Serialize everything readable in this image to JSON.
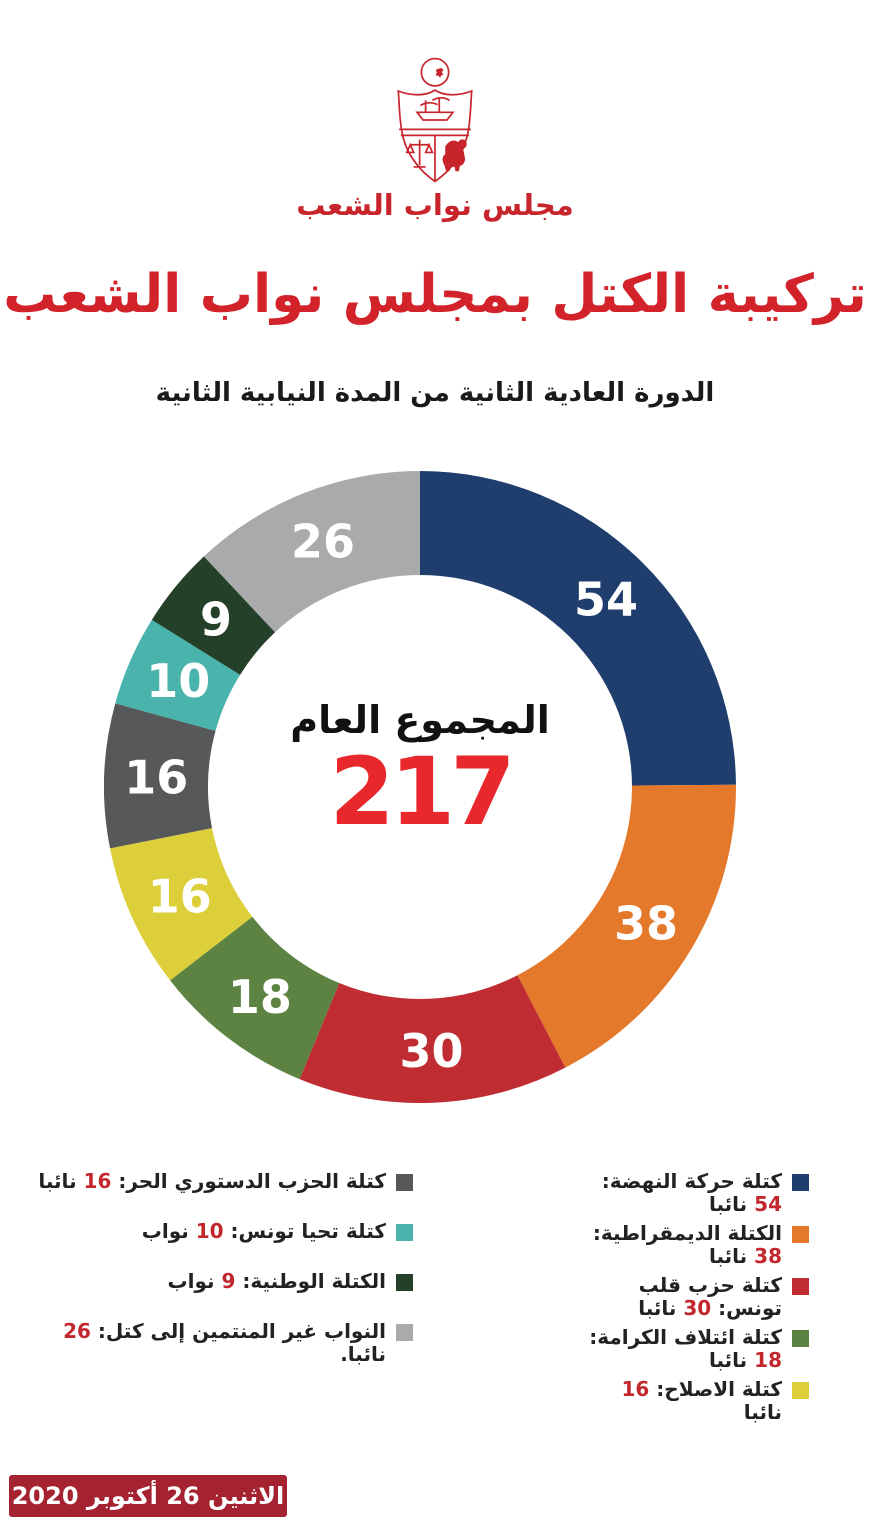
{
  "header": {
    "logo_caption": "مجلس نواب الشعب",
    "title": "تركيبة الكتل بمجلس نواب الشعب",
    "subtitle": "الدورة العادية الثانية من المدة النيابية الثانية"
  },
  "chart_data": {
    "type": "pie",
    "style": "donut",
    "title": "تركيبة الكتل بمجلس نواب الشعب",
    "center_label": "المجموع العام",
    "total": 217,
    "total_color": "#e8282c",
    "start_angle_deg": 0,
    "direction": "clockwise",
    "segments": [
      {
        "label": "كتلة حركة النهضة",
        "value": 54,
        "unit": "نائبا",
        "color": "#1f3e6d"
      },
      {
        "label": "الكتلة الديمقراطية",
        "value": 38,
        "unit": "نائبا",
        "color": "#e5792b"
      },
      {
        "label": "كتلة حزب قلب تونس",
        "value": 30,
        "unit": "نائبا",
        "color": "#bf2c31"
      },
      {
        "label": "كتلة ائتلاف الكرامة",
        "value": 18,
        "unit": "نائبا",
        "color": "#5c8342"
      },
      {
        "label": "كتلة الاصلاح",
        "value": 16,
        "unit": "نائبا",
        "color": "#dccf39"
      },
      {
        "label": "كتلة الحزب الدستوري الحر",
        "value": 16,
        "unit": "نائبا",
        "color": "#57585a"
      },
      {
        "label": "كتلة تحيا تونس",
        "value": 10,
        "unit": "نواب",
        "color": "#4ab3ab"
      },
      {
        "label": "الكتلة الوطنية",
        "value": 9,
        "unit": "نواب",
        "color": "#254029"
      },
      {
        "label": "النواب غير المنتمين إلى كتل",
        "value": 26,
        "unit": "نائبا.",
        "color": "#a9aaac"
      }
    ]
  },
  "legend": {
    "right_column_indexes": [
      0,
      1,
      2,
      3,
      4
    ],
    "left_column_indexes": [
      5,
      6,
      7,
      8
    ],
    "number_color": "#c2272d"
  },
  "footer": {
    "date_label": "الاثنين 26 أكتوبر 2020"
  }
}
